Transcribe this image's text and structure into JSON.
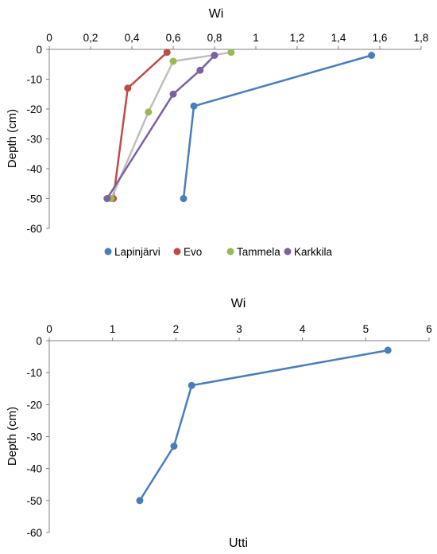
{
  "chart_data": [
    {
      "type": "line",
      "title": "Wi",
      "xlabel": "Wi",
      "ylabel": "Depth (cm)",
      "xlim": [
        0,
        1.8
      ],
      "ylim": [
        -60,
        0
      ],
      "x_ticks": [
        "0",
        "0,2",
        "0,4",
        "0,6",
        "0,8",
        "1",
        "1,2",
        "1,4",
        "1,6",
        "1,8"
      ],
      "y_ticks": [
        "0",
        "-10",
        "-20",
        "-30",
        "-40",
        "-50",
        "-60"
      ],
      "legend_position": "bottom",
      "series": [
        {
          "name": "Lapinjärvi",
          "color": "#4a7ebb",
          "points": [
            [
              1.56,
              -2
            ],
            [
              0.7,
              -19
            ],
            [
              0.65,
              -50
            ]
          ]
        },
        {
          "name": "Evo",
          "color": "#be4b48",
          "points": [
            [
              0.57,
              -1
            ],
            [
              0.38,
              -13
            ],
            [
              0.31,
              -50
            ]
          ]
        },
        {
          "name": "Tammela",
          "color": "#98b954",
          "points": [
            [
              0.88,
              -1
            ],
            [
              0.6,
              -4
            ],
            [
              0.48,
              -21
            ],
            [
              0.3,
              -50
            ]
          ]
        },
        {
          "name": "Karkkila",
          "color": "#7d60a0",
          "points": [
            [
              0.8,
              -2
            ],
            [
              0.73,
              -7
            ],
            [
              0.6,
              -15
            ],
            [
              0.28,
              -50
            ]
          ]
        }
      ],
      "connector_color": "#bfbfbf"
    },
    {
      "type": "line",
      "title": "Wi",
      "xlabel": "Wi",
      "ylabel": "Depth (cm)",
      "xlim": [
        0,
        6
      ],
      "ylim": [
        -60,
        0
      ],
      "x_ticks": [
        "0",
        "1",
        "2",
        "3",
        "4",
        "5",
        "6"
      ],
      "y_ticks": [
        "0",
        "-10",
        "-20",
        "-30",
        "-40",
        "-50",
        "-60"
      ],
      "series_label": "Utti",
      "series": [
        {
          "name": "Utti",
          "color": "#4a7ebb",
          "points": [
            [
              5.35,
              -3
            ],
            [
              2.25,
              -14
            ],
            [
              1.97,
              -33
            ],
            [
              1.43,
              -50
            ]
          ]
        }
      ]
    }
  ]
}
